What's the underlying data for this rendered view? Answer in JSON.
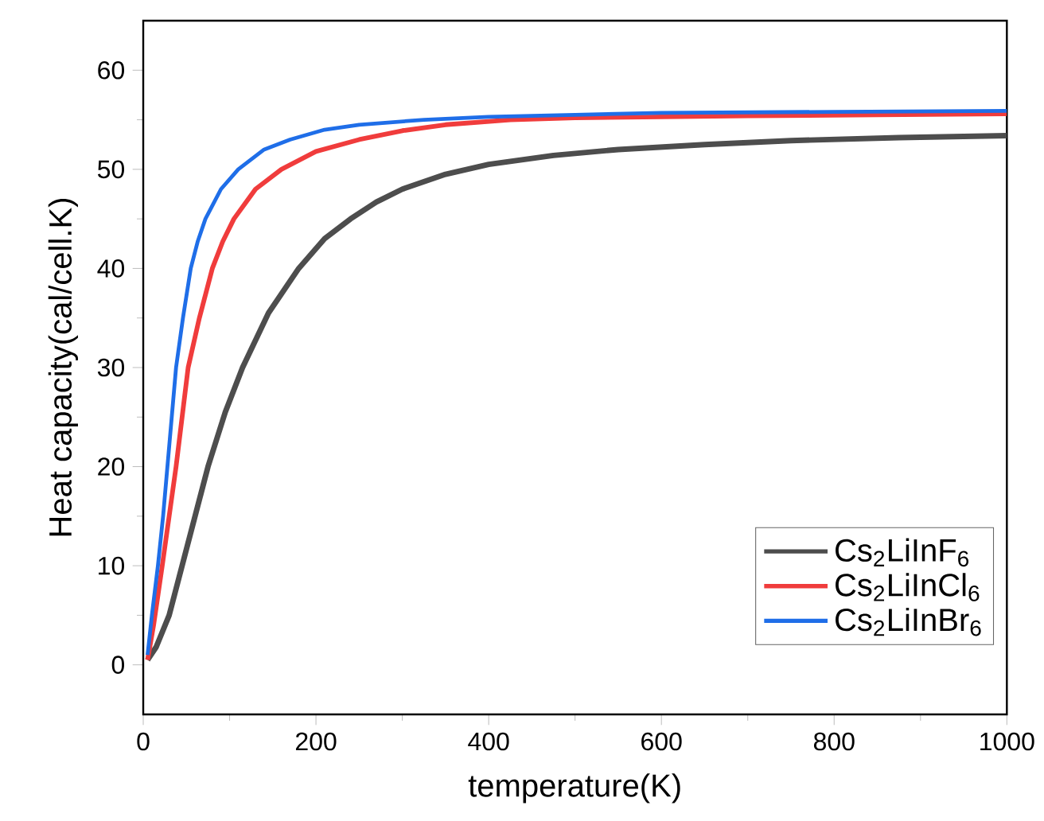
{
  "chart_data": {
    "type": "line",
    "xlabel": "temperature(K)",
    "ylabel": "Heat capacity(cal/cell.K)",
    "xlim": [
      0,
      1000
    ],
    "xticks": [
      0,
      200,
      400,
      600,
      800,
      1000
    ],
    "ylim": [
      -5,
      65
    ],
    "yticks": [
      0,
      10,
      20,
      30,
      40,
      50,
      60
    ],
    "grid": false,
    "legend": "bottom right",
    "series": [
      {
        "name": "Cs$_{2}$LiInF$_{6}$",
        "color": "#4d4d4d",
        "x": [
          5,
          15,
          30,
          45,
          60,
          75,
          95,
          115,
          145,
          180,
          210,
          240,
          270,
          300,
          350,
          400,
          475,
          550,
          650,
          750,
          875,
          1000
        ],
        "values": [
          0.5,
          1.8,
          5,
          10,
          15,
          20,
          25.5,
          30,
          35.5,
          40,
          43,
          45,
          46.7,
          48,
          49.5,
          50.5,
          51.4,
          52,
          52.5,
          52.9,
          53.2,
          53.4
        ]
      },
      {
        "name": "Cs$_{2}$LiInCl$_{6}$",
        "color": "#f03c3c",
        "x": [
          5,
          12,
          22,
          30,
          38,
          45,
          52,
          65,
          80,
          92,
          105,
          130,
          160,
          200,
          250,
          300,
          350,
          425,
          500,
          600,
          700,
          850,
          1000
        ],
        "values": [
          0.5,
          4,
          10,
          15,
          20,
          25,
          30,
          35,
          40,
          42.7,
          45,
          48,
          50,
          51.8,
          53,
          53.9,
          54.5,
          55,
          55.2,
          55.3,
          55.4,
          55.5,
          55.6
        ]
      },
      {
        "name": "Cs$_{2}$LiInBr$_{6}$",
        "color": "#1f6ee8",
        "x": [
          5,
          10,
          17,
          23,
          28,
          33,
          38,
          46,
          55,
          63,
          72,
          90,
          110,
          140,
          170,
          210,
          250,
          325,
          400,
          500,
          600,
          800,
          1000
        ],
        "values": [
          1,
          5,
          10,
          15,
          20,
          25,
          30,
          35,
          40,
          42.7,
          45,
          48,
          50,
          52,
          53,
          54,
          54.5,
          55,
          55.3,
          55.5,
          55.7,
          55.8,
          55.9
        ]
      }
    ]
  }
}
